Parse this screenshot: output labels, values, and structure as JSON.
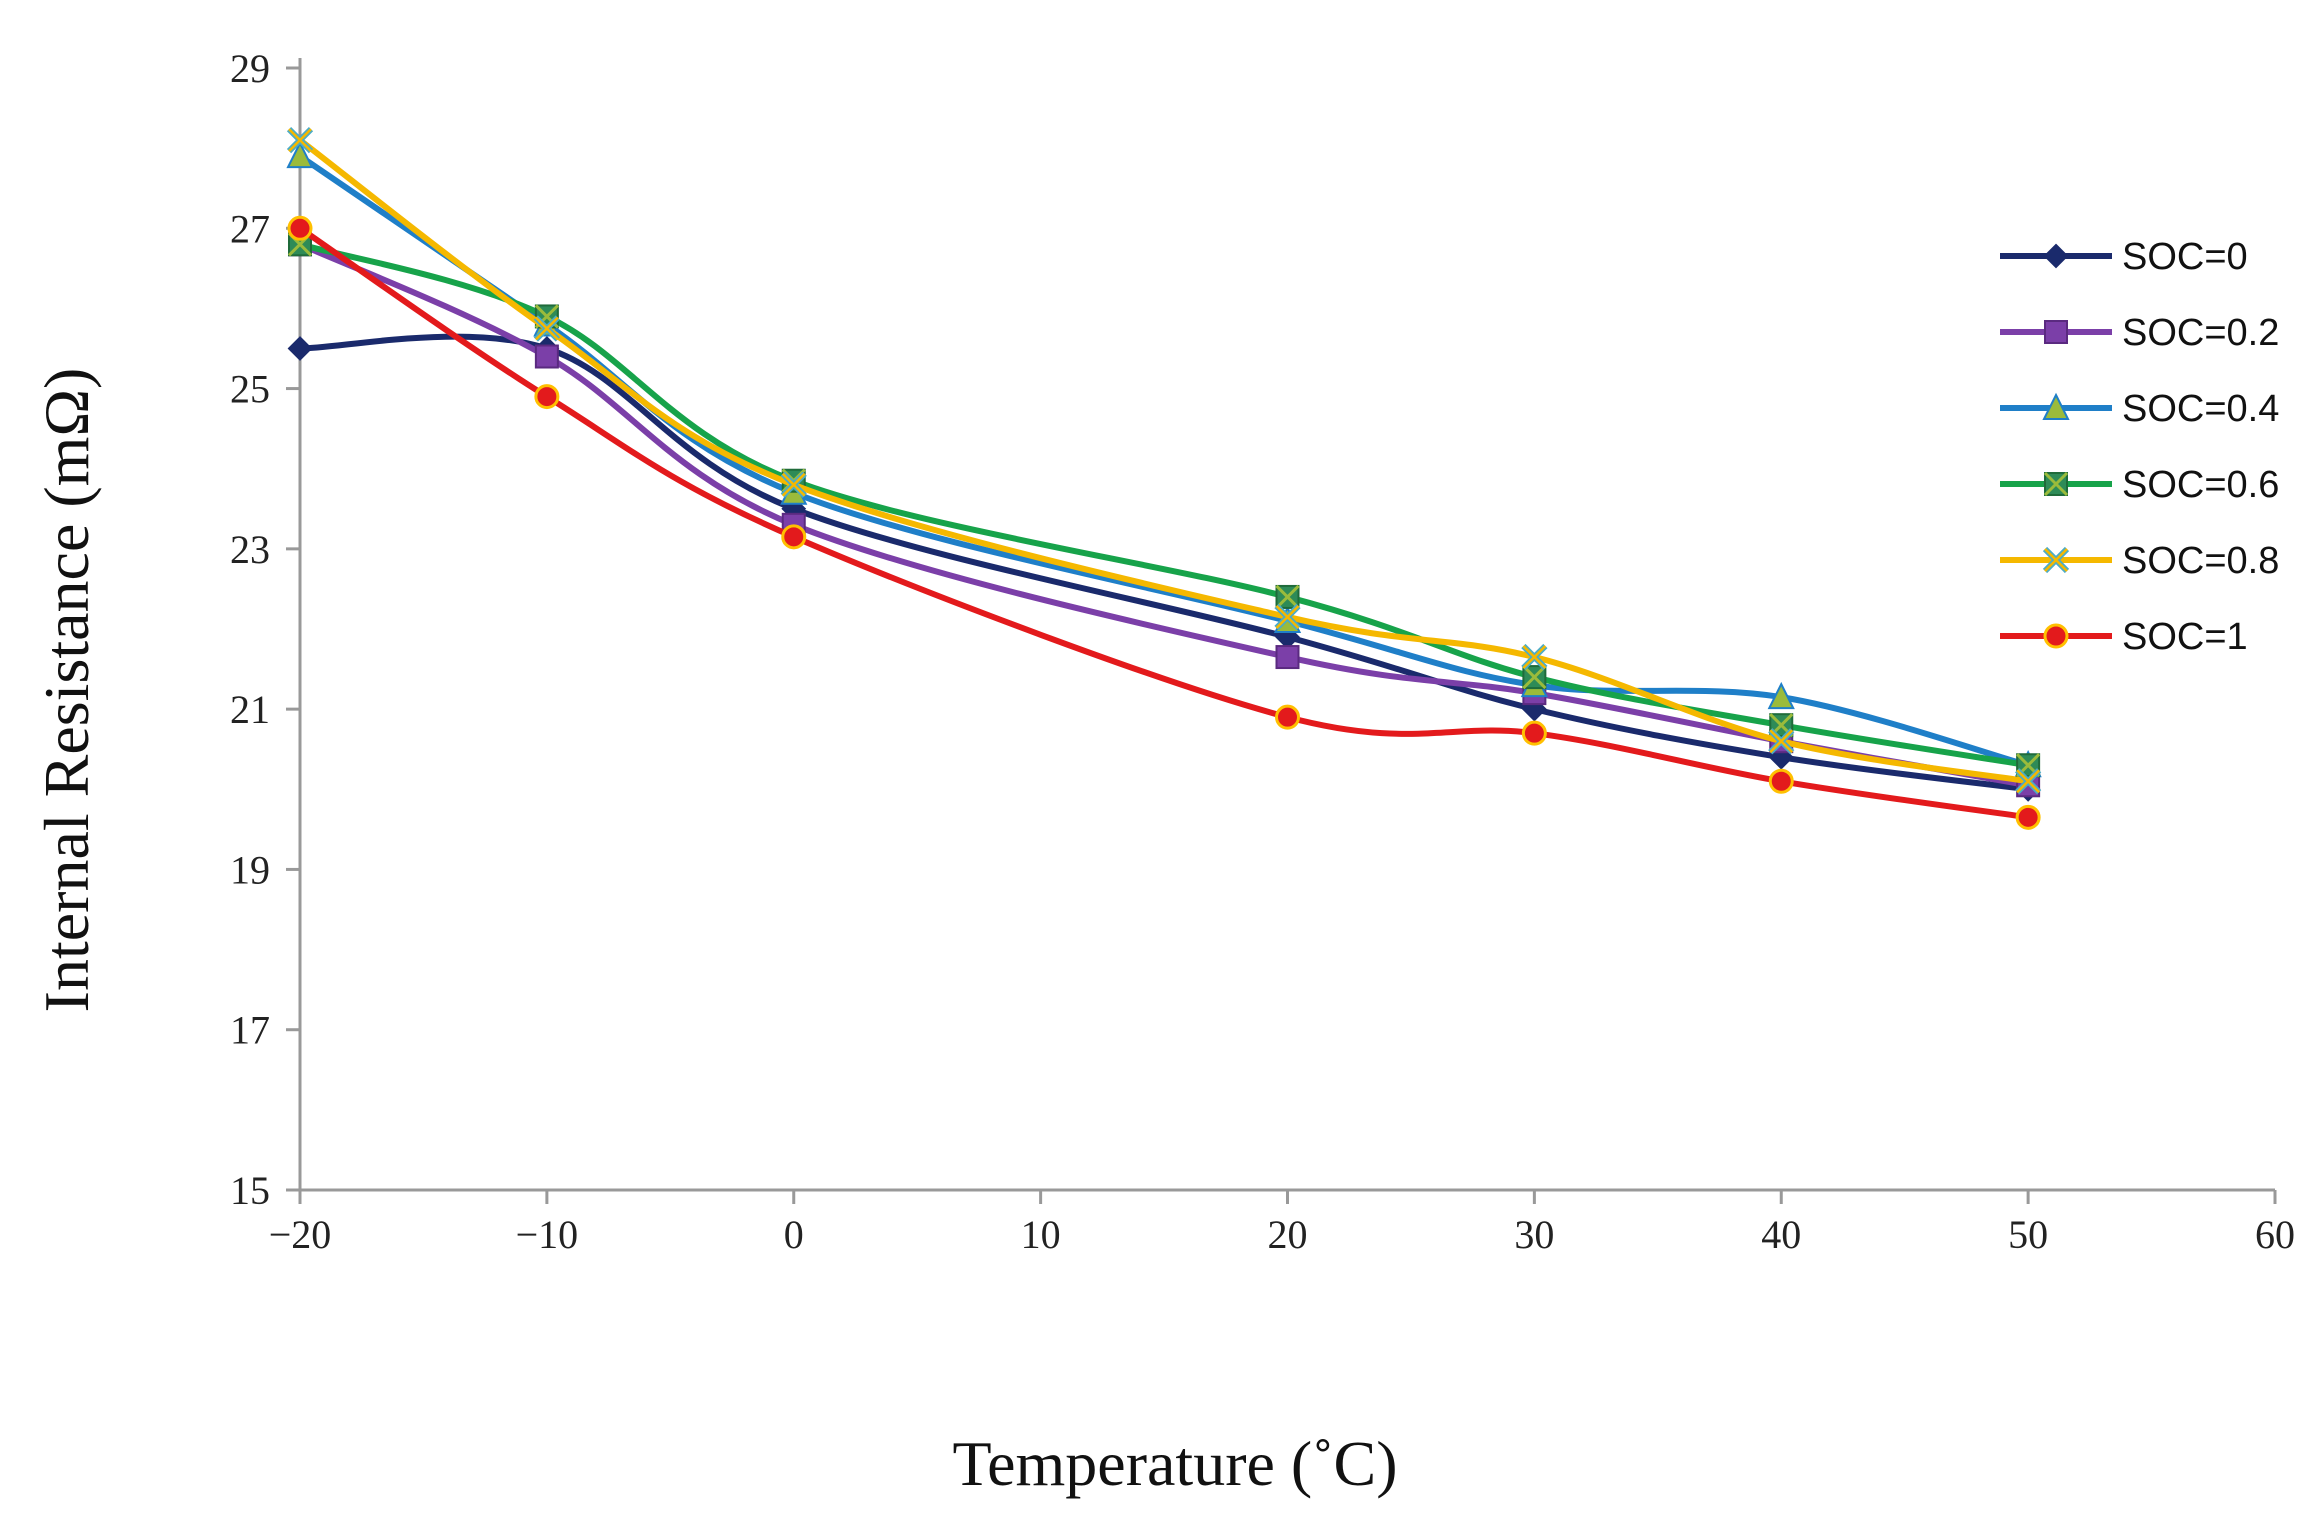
{
  "chart_data": {
    "type": "line",
    "title": "",
    "xlabel": "Temperature (˚C)",
    "ylabel": "Internal Resistance  (mΩ)",
    "xlim": [
      -20,
      60
    ],
    "ylim": [
      15,
      29
    ],
    "xticks": [
      -20,
      -10,
      0,
      10,
      20,
      30,
      40,
      50,
      60
    ],
    "yticks": [
      15,
      17,
      19,
      21,
      23,
      25,
      27,
      29
    ],
    "x_tick_labels": [
      "−20",
      "−10",
      "0",
      "10",
      "20",
      "30",
      "40",
      "50",
      "60"
    ],
    "y_tick_labels": [
      "15",
      "17",
      "19",
      "21",
      "23",
      "25",
      "27",
      "29"
    ],
    "x": [
      -20,
      -10,
      0,
      20,
      30,
      40,
      50
    ],
    "legend_position": "right",
    "grid": false,
    "series": [
      {
        "name": "SOC=0",
        "color": "#1a2a6c",
        "marker": "diamond",
        "values": [
          25.5,
          25.5,
          23.5,
          21.9,
          21.0,
          20.4,
          20.0
        ]
      },
      {
        "name": "SOC=0.2",
        "color": "#7b3fa8",
        "marker": "square",
        "values": [
          26.8,
          25.4,
          23.3,
          21.65,
          21.2,
          20.6,
          20.05
        ]
      },
      {
        "name": "SOC=0.4",
        "color": "#1f7fc8",
        "marker": "triangle",
        "values": [
          27.9,
          25.8,
          23.7,
          22.1,
          21.3,
          21.15,
          20.3
        ]
      },
      {
        "name": "SOC=0.6",
        "color": "#17a34a",
        "marker": "square-x",
        "values": [
          26.8,
          25.9,
          23.85,
          22.4,
          21.4,
          20.8,
          20.3
        ]
      },
      {
        "name": "SOC=0.8",
        "color": "#f5b800",
        "marker": "x",
        "values": [
          28.1,
          25.75,
          23.8,
          22.15,
          21.65,
          20.6,
          20.1
        ]
      },
      {
        "name": "SOC=1",
        "color": "#e31a1c",
        "marker": "circle",
        "values": [
          27.0,
          24.9,
          23.15,
          20.9,
          20.7,
          20.1,
          19.65
        ]
      }
    ]
  }
}
